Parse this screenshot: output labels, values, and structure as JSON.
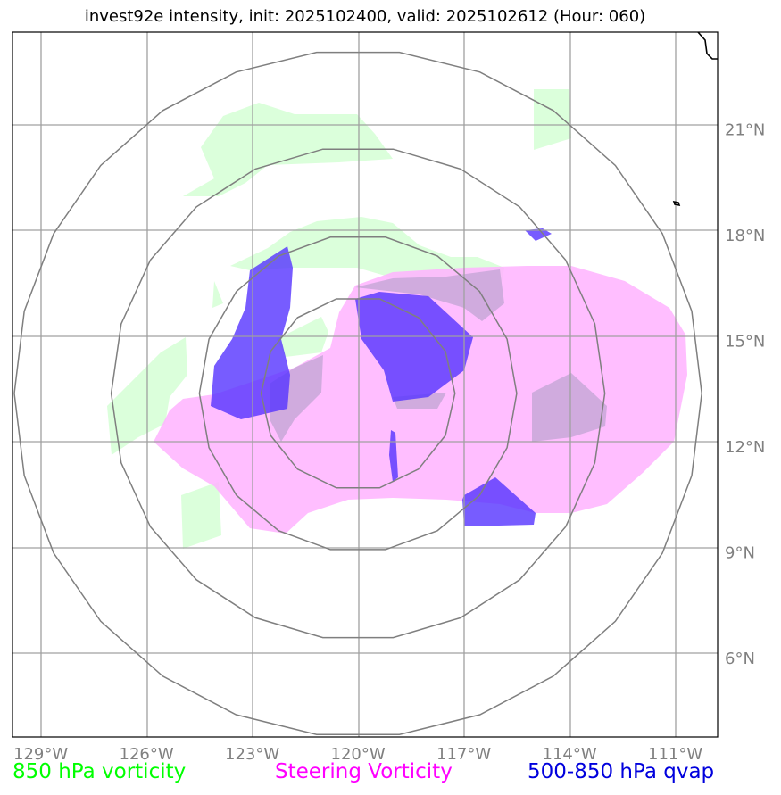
{
  "title": "invest92e intensity, init: 2025102400, valid: 2025102612 (Hour: 060)",
  "legend": [
    {
      "label": "850 hPa vorticity",
      "color": "#00ff00"
    },
    {
      "label": "Steering Vorticity",
      "color": "#ff00ff"
    },
    {
      "label": "500-850 hPa qvap",
      "color": "#0000dd"
    }
  ],
  "map": {
    "lon_range": [
      -129.8,
      -109.8
    ],
    "lat_range": [
      3.75,
      23.75
    ],
    "lon_ticks": [
      "129°W",
      "126°W",
      "123°W",
      "120°W",
      "117°W",
      "114°W",
      "111°W"
    ],
    "lat_ticks": [
      "21°N",
      "18°N",
      "15°N",
      "12°N",
      "9°N",
      "6°N"
    ],
    "storm_center": {
      "lon": -120.0,
      "lat": 13.5
    },
    "range_rings_deg": [
      2.75,
      4.5,
      7.0,
      9.75
    ],
    "colors": {
      "grid": "#a0a0a0",
      "rings": "#7f7f7f",
      "vorticity_850": "#ccffcc",
      "steering_vorticity": "#ffb3ff",
      "qvap": "#4d33ff",
      "coastline": "#000000"
    }
  }
}
